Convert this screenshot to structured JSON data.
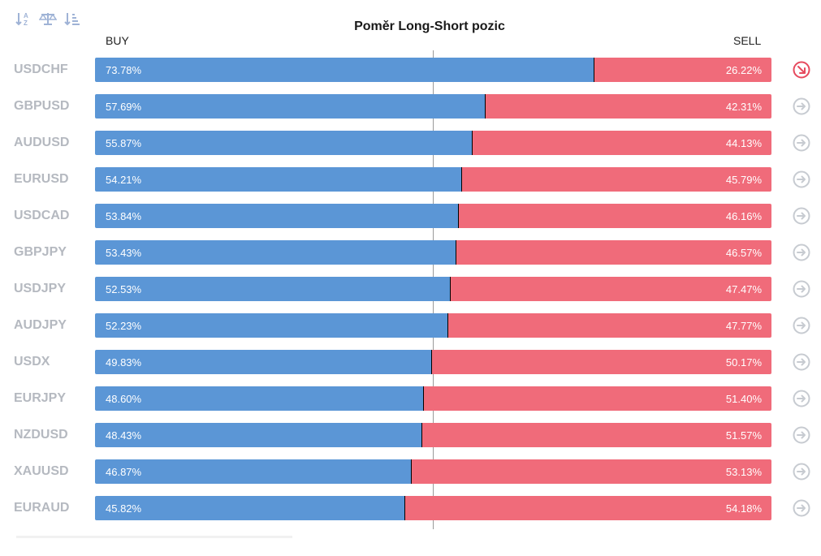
{
  "toolbar": {
    "icons": [
      "sort-alpha-icon",
      "balance-scale-icon",
      "sort-list-icon"
    ]
  },
  "title": "Poměr Long-Short pozic",
  "buy_label": "BUY",
  "sell_label": "SELL",
  "colors": {
    "buy": "#5b96d6",
    "sell": "#f06b7a",
    "symbol_text": "#b5b9c0",
    "arrow_active": "#e64a5e",
    "arrow_neutral": "#c7cbd1"
  },
  "chart_data": {
    "type": "bar",
    "orientation": "horizontal-stacked-100",
    "title": "Poměr Long-Short pozic",
    "categories": [
      "USDCHF",
      "GBPUSD",
      "AUDUSD",
      "EURUSD",
      "USDCAD",
      "GBPJPY",
      "USDJPY",
      "AUDJPY",
      "USDX",
      "EURJPY",
      "NZDUSD",
      "XAUUSD",
      "EURAUD"
    ],
    "series": [
      {
        "name": "BUY",
        "values": [
          73.78,
          57.69,
          55.87,
          54.21,
          53.84,
          53.43,
          52.53,
          52.23,
          49.83,
          48.6,
          48.43,
          46.87,
          45.82
        ]
      },
      {
        "name": "SELL",
        "values": [
          26.22,
          42.31,
          44.13,
          45.79,
          46.16,
          46.57,
          47.47,
          47.77,
          50.17,
          51.4,
          51.57,
          53.13,
          54.18
        ]
      }
    ],
    "labels_buy": [
      "73.78%",
      "57.69%",
      "55.87%",
      "54.21%",
      "53.84%",
      "53.43%",
      "52.53%",
      "52.23%",
      "49.83%",
      "48.60%",
      "48.43%",
      "46.87%",
      "45.82%"
    ],
    "labels_sell": [
      "26.22%",
      "42.31%",
      "44.13%",
      "45.79%",
      "46.16%",
      "46.57%",
      "47.47%",
      "47.77%",
      "50.17%",
      "51.40%",
      "51.57%",
      "53.13%",
      "54.18%"
    ],
    "arrow_state": [
      "down-right",
      "right",
      "right",
      "right",
      "right",
      "right",
      "right",
      "right",
      "right",
      "right",
      "right",
      "right",
      "right"
    ],
    "xlim": [
      0,
      100
    ],
    "reference_line": 50
  }
}
